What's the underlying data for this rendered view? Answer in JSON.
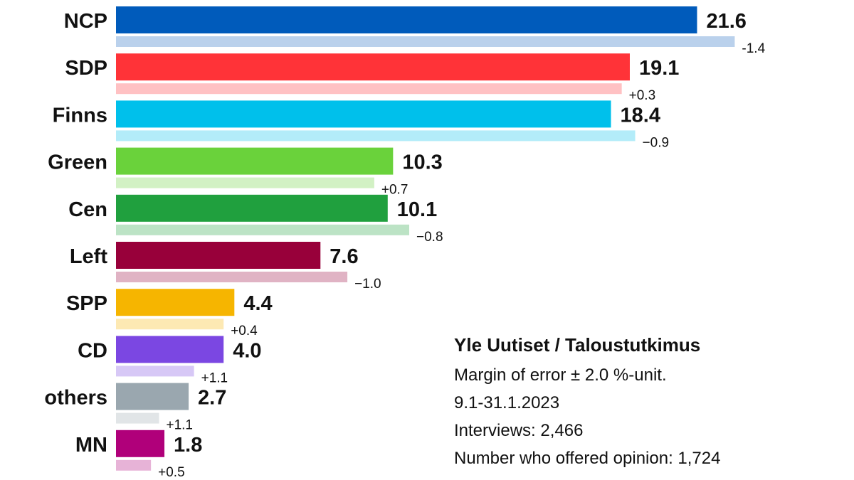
{
  "chart_data": {
    "type": "bar",
    "orientation": "horizontal",
    "categories": [
      "NCP",
      "SDP",
      "Finns",
      "Green",
      "Cen",
      "Left",
      "SPP",
      "CD",
      "others",
      "MN"
    ],
    "series": [
      {
        "values": [
          21.6,
          19.1,
          18.4,
          10.3,
          10.1,
          7.6,
          4.4,
          4.0,
          2.7,
          1.8
        ],
        "colors": [
          "#005bbb",
          "#ff3338",
          "#00c0eb",
          "#6ad23b",
          "#20a03e",
          "#98003a",
          "#f6b500",
          "#7b47e2",
          "#9aa7af",
          "#b0007a"
        ]
      },
      {
        "values": [
          23.0,
          18.8,
          19.3,
          9.6,
          10.9,
          8.6,
          4.0,
          2.9,
          1.6,
          1.3
        ],
        "colors": [
          "#bad1ec",
          "#ffc1c3",
          "#b3ecf9",
          "#d2f1c4",
          "#bce3c5",
          "#e0b3c4",
          "#fde9b3",
          "#d7c8f6",
          "#e1e5e7",
          "#e7b3d7"
        ]
      }
    ],
    "change_labels": [
      "-1.4",
      "+0.3",
      "−0.9",
      "+0.7",
      "−0.8",
      "−1.0",
      "+0.4",
      "+1.1",
      "+1.1",
      "+0.5"
    ],
    "value_labels": [
      "21.6",
      "19.1",
      "18.4",
      "10.3",
      "10.1",
      "7.6",
      "4.4",
      "4.0",
      "2.7",
      "1.8"
    ],
    "title": "",
    "xlabel": "",
    "ylabel": "",
    "xlim": [
      0,
      24.5
    ],
    "grid": false,
    "legend": "none"
  },
  "info": {
    "source": "Yle Uutiset / Taloustutkimus",
    "margin_of_error": "Margin of error ± 2.0 %-unit.",
    "period": "9.1-31.1.2023",
    "interviews": "Interviews: 2,466",
    "opinion": "Number who offered opinion: 1,724"
  }
}
